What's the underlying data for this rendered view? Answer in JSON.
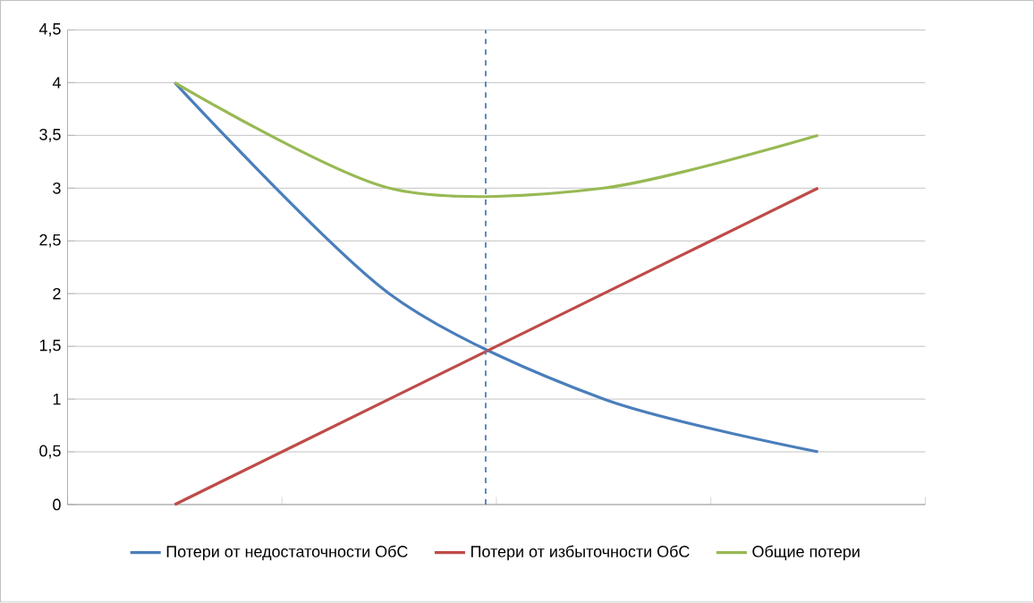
{
  "chart_data": {
    "type": "line",
    "categories": [
      null,
      null,
      null,
      null
    ],
    "series": [
      {
        "name": "Потери от недостаточности ОбС",
        "color": "#4a7ebb",
        "values": [
          4,
          2,
          1,
          0.5
        ]
      },
      {
        "name": "Потери от избыточности ОбС",
        "color": "#be4b48",
        "values": [
          0,
          1,
          2,
          3
        ]
      },
      {
        "name": "Общие потери",
        "color": "#98b954",
        "values": [
          4,
          3,
          3,
          3.5
        ]
      }
    ],
    "ylim": [
      0,
      4.5
    ],
    "yticks": [
      0,
      {
        "value": 0.5,
        "label": "0,5"
      },
      1,
      {
        "value": 1.5,
        "label": "1,5"
      },
      2,
      {
        "value": 2.5,
        "label": "2,5"
      },
      3,
      {
        "value": 3.5,
        "label": "3,5"
      },
      4,
      {
        "value": 4.5,
        "label": "4,5"
      }
    ],
    "grid": "y",
    "legend": "bottom",
    "marker": "none",
    "line_style": "solid"
  }
}
